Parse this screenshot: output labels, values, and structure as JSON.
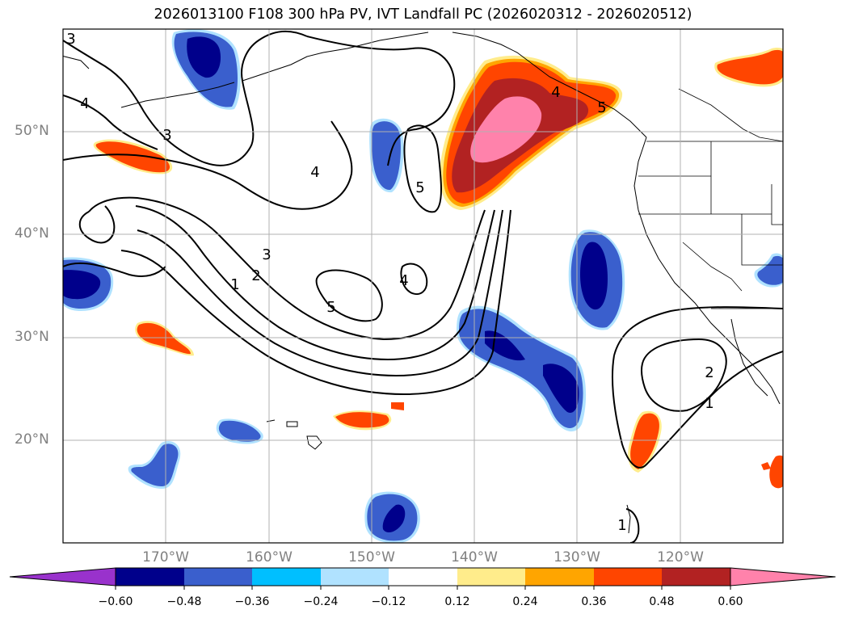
{
  "title": "2026013100 F108 300 hPa PV, IVT Landfall PC (2026020312 - 2026020512)",
  "map": {
    "latitude_labels": [
      "50°N",
      "40°N",
      "30°N",
      "20°N"
    ],
    "longitude_labels": [
      "170°W",
      "160°W",
      "150°W",
      "140°W",
      "130°W",
      "120°W"
    ],
    "contour_labels": [
      "3",
      "4",
      "3",
      "4",
      "5",
      "1",
      "2",
      "3",
      "5",
      "4",
      "5",
      "4",
      "2",
      "1",
      "1"
    ]
  },
  "colorbar": {
    "ticks": [
      "−0.60",
      "−0.48",
      "−0.36",
      "−0.24",
      "−0.12",
      "0.12",
      "0.24",
      "0.36",
      "0.48",
      "0.60"
    ],
    "colors": [
      "#9932cc",
      "#00008b",
      "#3a5fcd",
      "#00bfff",
      "#b0e2ff",
      "#ffffff",
      "#ffec8b",
      "#ffa500",
      "#ff4500",
      "#b22222",
      "#ff82ab"
    ]
  },
  "colors": {
    "gridline": "#b0b0b0",
    "contour": "#000000",
    "axis_label": "#808080"
  }
}
